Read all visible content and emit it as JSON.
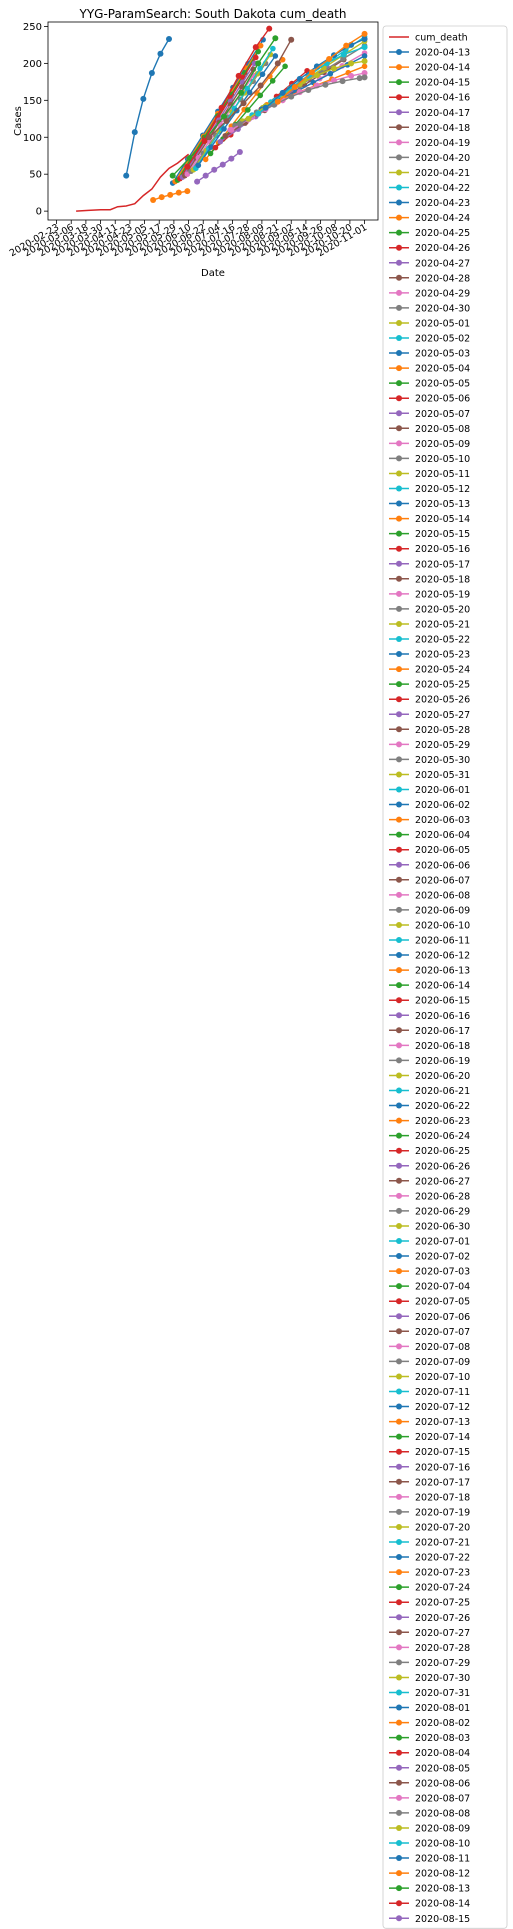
{
  "chart_data": {
    "type": "line",
    "title": "YYG-ParamSearch: South Dakota cum_death",
    "xlabel": "Date",
    "ylabel": "Cases",
    "ylim": [
      -12,
      256
    ],
    "yticks": [
      0,
      50,
      100,
      150,
      200,
      250
    ],
    "xlim": [
      "2020-02-16",
      "2020-11-12"
    ],
    "xticks": [
      "2020-02-23",
      "2020-03-06",
      "2020-03-18",
      "2020-03-30",
      "2020-04-11",
      "2020-04-23",
      "2020-05-05",
      "2020-05-17",
      "2020-05-29",
      "2020-06-10",
      "2020-06-22",
      "2020-07-04",
      "2020-07-16",
      "2020-07-28",
      "2020-08-09",
      "2020-08-21",
      "2020-09-02",
      "2020-09-14",
      "2020-09-26",
      "2020-10-08",
      "2020-10-20",
      "2020-11-01"
    ],
    "legend_position": "outside-right",
    "palette": [
      "#1f77b4",
      "#ff7f0e",
      "#2ca02c",
      "#d62728",
      "#9467bd",
      "#8c564b",
      "#e377c2",
      "#7f7f7f",
      "#bcbd22",
      "#17becf"
    ],
    "observed": {
      "name": "cum_death",
      "color": "#d62728",
      "x": [
        "2020-03-10",
        "2020-03-20",
        "2020-03-30",
        "2020-04-07",
        "2020-04-13",
        "2020-04-20",
        "2020-04-27",
        "2020-05-04",
        "2020-05-11",
        "2020-05-18",
        "2020-05-25",
        "2020-06-01",
        "2020-06-10"
      ],
      "y": [
        0,
        1,
        2,
        2,
        6,
        7,
        10,
        21,
        30,
        46,
        58,
        65,
        77
      ]
    },
    "forecast_names": [
      "2020-04-13",
      "2020-04-14",
      "2020-04-15",
      "2020-04-16",
      "2020-04-17",
      "2020-04-18",
      "2020-04-19",
      "2020-04-20",
      "2020-04-21",
      "2020-04-22",
      "2020-04-23",
      "2020-04-24",
      "2020-04-25",
      "2020-04-26",
      "2020-04-27",
      "2020-04-28",
      "2020-04-29",
      "2020-04-30",
      "2020-05-01",
      "2020-05-02",
      "2020-05-03",
      "2020-05-04",
      "2020-05-05",
      "2020-05-06",
      "2020-05-07",
      "2020-05-08",
      "2020-05-09",
      "2020-05-10",
      "2020-05-11",
      "2020-05-12",
      "2020-05-13",
      "2020-05-14",
      "2020-05-15",
      "2020-05-16",
      "2020-05-17",
      "2020-05-18",
      "2020-05-19",
      "2020-05-20",
      "2020-05-21",
      "2020-05-22",
      "2020-05-23",
      "2020-05-24",
      "2020-05-25",
      "2020-05-26",
      "2020-05-27",
      "2020-05-28",
      "2020-05-29",
      "2020-05-30",
      "2020-05-31",
      "2020-06-01",
      "2020-06-02",
      "2020-06-03",
      "2020-06-04",
      "2020-06-05",
      "2020-06-06",
      "2020-06-07",
      "2020-06-08",
      "2020-06-09",
      "2020-06-10",
      "2020-06-11",
      "2020-06-12",
      "2020-06-13",
      "2020-06-14",
      "2020-06-15",
      "2020-06-16",
      "2020-06-17",
      "2020-06-18",
      "2020-06-19",
      "2020-06-20",
      "2020-06-21",
      "2020-06-22",
      "2020-06-23",
      "2020-06-24",
      "2020-06-25",
      "2020-06-26",
      "2020-06-27",
      "2020-06-28",
      "2020-06-29",
      "2020-06-30",
      "2020-07-01",
      "2020-07-02",
      "2020-07-03",
      "2020-07-04",
      "2020-07-05",
      "2020-07-06",
      "2020-07-07",
      "2020-07-08",
      "2020-07-09",
      "2020-07-10",
      "2020-07-11",
      "2020-07-12",
      "2020-07-13",
      "2020-07-14",
      "2020-07-15",
      "2020-07-16",
      "2020-07-17",
      "2020-07-18",
      "2020-07-19",
      "2020-07-20",
      "2020-07-21",
      "2020-07-22",
      "2020-07-23",
      "2020-07-24",
      "2020-07-25",
      "2020-07-26",
      "2020-07-27",
      "2020-07-28",
      "2020-07-29",
      "2020-07-30",
      "2020-07-31",
      "2020-08-01",
      "2020-08-02",
      "2020-08-03",
      "2020-08-04",
      "2020-08-05",
      "2020-08-06",
      "2020-08-07",
      "2020-08-08",
      "2020-08-09",
      "2020-08-10",
      "2020-08-11",
      "2020-08-12",
      "2020-08-13",
      "2020-08-14",
      "2020-08-15"
    ],
    "series": [
      {
        "name": "2020-04-13",
        "x": [
          "2020-04-20",
          "2020-04-27",
          "2020-05-04",
          "2020-05-11",
          "2020-05-18",
          "2020-05-25"
        ],
        "y": [
          48,
          107,
          152,
          187,
          213,
          233
        ]
      },
      {
        "name": "2020-05-05",
        "x": [
          "2020-05-12",
          "2020-05-19",
          "2020-05-26",
          "2020-06-02",
          "2020-06-09"
        ],
        "y": [
          15,
          19,
          22,
          25,
          27
        ]
      },
      {
        "name": "2020-05-21",
        "x": [
          "2020-05-28",
          "2020-06-11",
          "2020-06-25",
          "2020-07-09",
          "2020-07-23",
          "2020-08-06",
          "2020-08-20"
        ],
        "y": [
          48,
          72,
          100,
          128,
          160,
          200,
          234
        ]
      },
      {
        "name": "2020-06-02",
        "x": [
          "2020-06-09",
          "2020-06-23",
          "2020-07-07",
          "2020-07-21",
          "2020-08-04",
          "2020-08-15"
        ],
        "y": [
          60,
          95,
          140,
          183,
          222,
          247
        ]
      },
      {
        "name": "2020-06-10",
        "x": [
          "2020-06-17",
          "2020-06-24",
          "2020-07-01",
          "2020-07-08",
          "2020-07-15",
          "2020-07-22"
        ],
        "y": [
          40,
          48,
          56,
          63,
          71,
          80
        ]
      },
      {
        "name": "2020-06-20",
        "x": [
          "2020-06-27",
          "2020-07-11",
          "2020-07-25",
          "2020-08-08",
          "2020-08-22",
          "2020-09-02"
        ],
        "y": [
          100,
          122,
          146,
          170,
          200,
          232
        ]
      },
      {
        "name": "2020-07-08",
        "x": [
          "2020-07-15",
          "2020-07-29",
          "2020-08-12",
          "2020-08-26",
          "2020-09-09",
          "2020-09-23",
          "2020-10-07",
          "2020-10-21",
          "2020-11-01"
        ],
        "y": [
          110,
          124,
          138,
          150,
          161,
          170,
          177,
          183,
          187
        ]
      },
      {
        "name": "2020-07-15",
        "x": [
          "2020-07-22",
          "2020-08-05",
          "2020-08-19",
          "2020-09-02",
          "2020-09-16",
          "2020-09-30",
          "2020-10-14",
          "2020-10-28",
          "2020-11-01"
        ],
        "y": [
          118,
          132,
          144,
          155,
          164,
          171,
          176,
          180,
          181
        ]
      },
      {
        "name": "2020-07-22",
        "x": [
          "2020-07-29",
          "2020-08-12",
          "2020-08-26",
          "2020-09-09",
          "2020-09-23",
          "2020-10-07",
          "2020-10-21",
          "2020-11-01"
        ],
        "y": [
          125,
          142,
          158,
          172,
          184,
          193,
          200,
          203
        ]
      },
      {
        "name": "2020-07-30",
        "x": [
          "2020-08-06",
          "2020-08-20",
          "2020-09-03",
          "2020-09-17",
          "2020-10-01",
          "2020-10-15",
          "2020-11-01"
        ],
        "y": [
          132,
          150,
          168,
          185,
          200,
          212,
          222
        ]
      },
      {
        "name": "2020-08-05",
        "x": [
          "2020-08-12",
          "2020-08-26",
          "2020-09-09",
          "2020-09-23",
          "2020-10-07",
          "2020-10-21",
          "2020-11-01"
        ],
        "y": [
          140,
          160,
          179,
          196,
          211,
          225,
          233
        ]
      },
      {
        "name": "2020-08-15",
        "x": [
          "2020-08-22",
          "2020-09-05",
          "2020-09-19",
          "2020-10-03",
          "2020-10-17",
          "2020-11-01"
        ],
        "y": [
          148,
          168,
          188,
          206,
          224,
          240
        ]
      }
    ],
    "band_series": [
      {
        "x0": "2020-05-28",
        "y0": 38,
        "x1": "2020-08-10",
        "y1": 232
      },
      {
        "x0": "2020-05-30",
        "y0": 40,
        "x1": "2020-08-08",
        "y1": 224
      },
      {
        "x0": "2020-06-01",
        "y0": 42,
        "x1": "2020-08-06",
        "y1": 216
      },
      {
        "x0": "2020-06-03",
        "y0": 44,
        "x1": "2020-08-04",
        "y1": 208
      },
      {
        "x0": "2020-06-05",
        "y0": 46,
        "x1": "2020-08-03",
        "y1": 200
      },
      {
        "x0": "2020-06-07",
        "y0": 48,
        "x1": "2020-08-02",
        "y1": 192
      },
      {
        "x0": "2020-06-09",
        "y0": 50,
        "x1": "2020-08-02",
        "y1": 184
      },
      {
        "x0": "2020-06-12",
        "y0": 54,
        "x1": "2020-08-12",
        "y1": 200
      },
      {
        "x0": "2020-06-14",
        "y0": 56,
        "x1": "2020-08-16",
        "y1": 212
      },
      {
        "x0": "2020-06-16",
        "y0": 58,
        "x1": "2020-08-18",
        "y1": 220
      },
      {
        "x0": "2020-06-18",
        "y0": 62,
        "x1": "2020-08-20",
        "y1": 210
      },
      {
        "x0": "2020-06-24",
        "y0": 70,
        "x1": "2020-08-26",
        "y1": 205
      },
      {
        "x0": "2020-06-28",
        "y0": 78,
        "x1": "2020-08-28",
        "y1": 196
      },
      {
        "x0": "2020-07-02",
        "y0": 86,
        "x1": "2020-09-15",
        "y1": 190
      },
      {
        "x0": "2020-07-06",
        "y0": 94,
        "x1": "2020-10-01",
        "y1": 196
      },
      {
        "x0": "2020-07-10",
        "y0": 102,
        "x1": "2020-10-15",
        "y1": 205
      },
      {
        "x0": "2020-07-14",
        "y0": 110,
        "x1": "2020-11-01",
        "y1": 214
      },
      {
        "x0": "2020-07-18",
        "y0": 116,
        "x1": "2020-11-01",
        "y1": 224
      },
      {
        "x0": "2020-07-24",
        "y0": 122,
        "x1": "2020-11-01",
        "y1": 230
      },
      {
        "x0": "2020-08-01",
        "y0": 130,
        "x1": "2020-11-01",
        "y1": 236
      },
      {
        "x0": "2020-08-09",
        "y0": 138,
        "x1": "2020-11-01",
        "y1": 210
      },
      {
        "x0": "2020-08-13",
        "y0": 144,
        "x1": "2020-11-01",
        "y1": 196
      }
    ]
  }
}
